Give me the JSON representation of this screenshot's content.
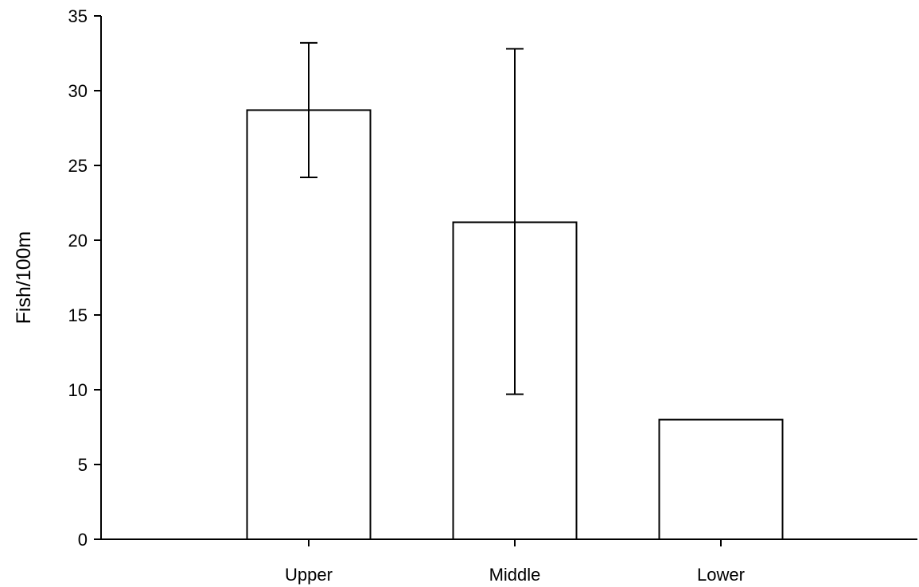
{
  "chart_data": {
    "type": "bar",
    "title": "",
    "xlabel": "",
    "ylabel": "Fish/100m",
    "categories": [
      "Upper",
      "Middle",
      "Lower"
    ],
    "values": [
      28.7,
      21.2,
      8.0
    ],
    "error_bars": [
      {
        "low": 24.2,
        "high": 33.2
      },
      {
        "low": 9.7,
        "high": 32.8
      },
      null
    ],
    "ylim": [
      0,
      35
    ],
    "yticks": [
      0,
      5,
      10,
      15,
      20,
      25,
      30,
      35
    ],
    "ytick_labels": [
      "0",
      "5",
      "10",
      "15",
      "20",
      "25",
      "30",
      "35"
    ],
    "grid": false,
    "legend": "none",
    "bar_fill": "#ffffff",
    "bar_stroke": "#000000"
  }
}
